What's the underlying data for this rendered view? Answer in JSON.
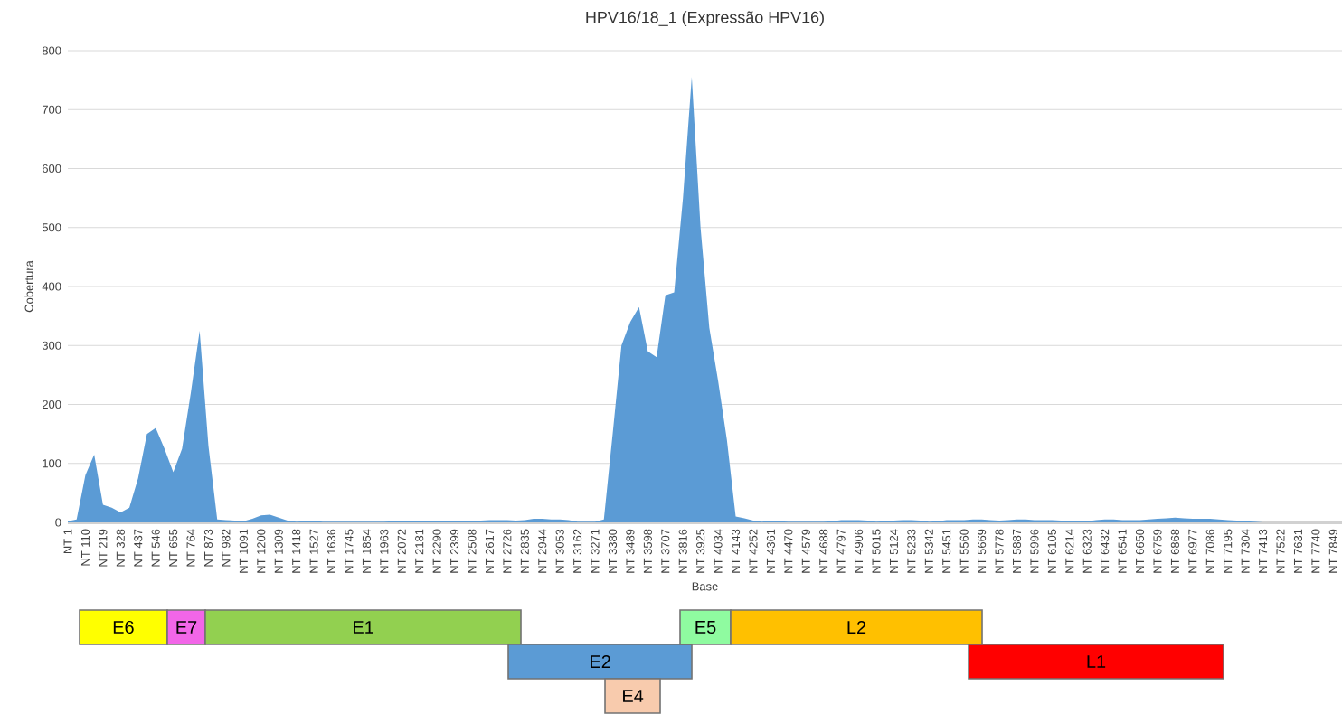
{
  "chart_data": [
    {
      "type": "area",
      "title": "HPV16/18_1 (Expressão HPV16)",
      "xlabel": "Base",
      "ylabel": "Cobertura",
      "color": "#5b9bd5",
      "grid": "y",
      "categories": [
        "NT 1",
        null,
        "NT 110",
        null,
        "NT 219",
        null,
        "NT 328",
        null,
        "NT 437",
        null,
        "NT 546",
        null,
        "NT 655",
        null,
        "NT 764",
        null,
        "NT 873",
        null,
        "NT 982",
        null,
        "NT 1091",
        null,
        "NT 1200",
        null,
        "NT 1309",
        null,
        "NT 1418",
        null,
        "NT 1527",
        null,
        "NT 1636",
        null,
        "NT 1745",
        null,
        "NT 1854",
        null,
        "NT 1963",
        null,
        "NT 2072",
        null,
        "NT 2181",
        null,
        "NT 2290",
        null,
        "NT 2399",
        null,
        "NT 2508",
        null,
        "NT 2617",
        null,
        "NT 2726",
        null,
        "NT 2835",
        null,
        "NT 2944",
        null,
        "NT 3053",
        null,
        "NT 3162",
        null,
        "NT 3271",
        null,
        "NT 3380",
        null,
        "NT 3489",
        null,
        "NT 3598",
        null,
        "NT 3707",
        null,
        "NT 3816",
        null,
        "NT 3925",
        null,
        "NT 4034",
        null,
        "NT 4143",
        null,
        "NT 4252",
        null,
        "NT 4361",
        null,
        "NT 4470",
        null,
        "NT 4579",
        null,
        "NT 4688",
        null,
        "NT 4797",
        null,
        "NT 4906",
        null,
        "NT 5015",
        null,
        "NT 5124",
        null,
        "NT 5233",
        null,
        "NT 5342",
        null,
        "NT 5451",
        null,
        "NT 5560",
        null,
        "NT 5669",
        null,
        "NT 5778",
        null,
        "NT 5887",
        null,
        "NT 5996",
        null,
        "NT 6105",
        null,
        "NT 6214",
        null,
        "NT 6323",
        null,
        "NT 6432",
        null,
        "NT 6541",
        null,
        "NT 6650",
        null,
        "NT 6759",
        null,
        "NT 6868",
        null,
        "NT 6977",
        null,
        "NT 7086",
        null,
        "NT 7195",
        null,
        "NT 7304",
        null,
        "NT 7413",
        null,
        "NT 7522",
        null,
        "NT 7631",
        null,
        "NT 7740",
        null,
        "NT 7849"
      ],
      "values": [
        2,
        5,
        80,
        115,
        30,
        25,
        17,
        25,
        75,
        150,
        160,
        125,
        85,
        125,
        220,
        325,
        130,
        5,
        4,
        3,
        2,
        6,
        12,
        13,
        8,
        3,
        1,
        2,
        3,
        1,
        1,
        1,
        1,
        1,
        1,
        1,
        1,
        2,
        3,
        3,
        3,
        2,
        2,
        2,
        3,
        3,
        3,
        3,
        4,
        4,
        4,
        3,
        4,
        6,
        6,
        5,
        5,
        4,
        1,
        1,
        1,
        5,
        150,
        300,
        340,
        365,
        290,
        280,
        385,
        390,
        550,
        755,
        500,
        330,
        240,
        140,
        10,
        7,
        3,
        1,
        3,
        2,
        1,
        1,
        1,
        1,
        1,
        2,
        4,
        4,
        4,
        3,
        1,
        2,
        3,
        4,
        4,
        3,
        1,
        2,
        4,
        4,
        4,
        5,
        5,
        4,
        3,
        4,
        5,
        5,
        4,
        4,
        4,
        3,
        2,
        3,
        2,
        4,
        5,
        5,
        4,
        4,
        4,
        5,
        6,
        7,
        8,
        7,
        6,
        6,
        6,
        5,
        4,
        3,
        2,
        1,
        0,
        0,
        0,
        0,
        0,
        0,
        0,
        0,
        0
      ],
      "ylim": [
        0,
        800
      ],
      "yticks": [
        0,
        100,
        200,
        300,
        400,
        500,
        600,
        700,
        800
      ]
    },
    {
      "type": "other",
      "annotations": [
        "E6",
        "E7",
        "E1",
        "E2",
        "E4",
        "E5",
        "L2",
        "L1"
      ],
      "colors": [
        "#ffff00",
        "#f266e8",
        "#92d050",
        "#5b9bd5",
        "#f8cbad",
        "#8ffba0",
        "#ffc000",
        "#ff0000"
      ]
    }
  ]
}
